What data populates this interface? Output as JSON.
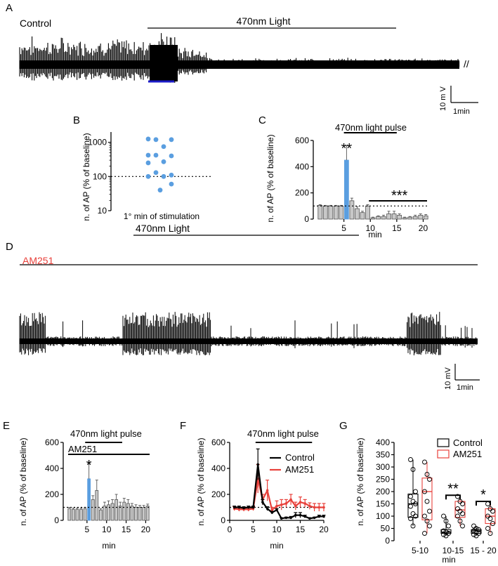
{
  "colors": {
    "blue": "#5a9ee0",
    "dark_blue": "#1b1bc8",
    "red": "#e8413b",
    "red_text": "#e8413b",
    "gray": "#c8c8c8",
    "black": "#000000"
  },
  "panel_a": {
    "letter": "A",
    "condition_label": "Control",
    "light_label": "470nm Light",
    "break_mark": "//",
    "scale_v": "10 m V",
    "scale_t": "1min"
  },
  "panel_d": {
    "letter": "D",
    "condition_label": "AM251",
    "light_label": "470nm Light",
    "scale_v": "10 mV",
    "scale_t": "1min"
  },
  "chart_data": [
    {
      "id": "B",
      "letter": "B",
      "type": "scatter",
      "ylabel": "n. of AP (% of baseline)",
      "xlabel": "1° min of stimulation",
      "yscale": "log",
      "ylim": [
        10,
        2000
      ],
      "yticks": [
        "10",
        "100",
        "1000"
      ],
      "reference_line": 100,
      "points": [
        1250,
        1200,
        1200,
        750,
        420,
        420,
        400,
        270,
        250,
        130,
        110,
        100,
        100,
        60,
        40
      ],
      "point_color": "#5a9ee0"
    },
    {
      "id": "C",
      "letter": "C",
      "type": "bar",
      "ylabel": "n. of AP (% of baseline)",
      "xlabel": "min",
      "ylim": [
        0,
        600
      ],
      "yticks": [
        "0",
        "200",
        "400",
        "600"
      ],
      "xticks": [
        "5",
        "10",
        "15",
        "20"
      ],
      "reference_line": 100,
      "light_label": "470nm light pulse",
      "stat_marks": [
        "**",
        "***"
      ],
      "values": [
        105,
        100,
        100,
        100,
        100,
        450,
        140,
        80,
        50,
        100,
        10,
        20,
        20,
        40,
        40,
        30,
        10,
        15,
        20,
        30,
        25
      ],
      "errors": [
        5,
        5,
        5,
        5,
        5,
        110,
        20,
        15,
        10,
        10,
        5,
        5,
        10,
        20,
        20,
        10,
        5,
        5,
        10,
        10,
        10
      ],
      "highlight_index": 5,
      "highlight_color": "#5a9ee0"
    },
    {
      "id": "E",
      "letter": "E",
      "type": "bar",
      "ylabel": "n. of AP (% of baseline)",
      "xlabel": "min",
      "ylim": [
        0,
        600
      ],
      "yticks": [
        "0",
        "200",
        "400",
        "600"
      ],
      "xticks": [
        "5",
        "10",
        "15",
        "20"
      ],
      "reference_line": 100,
      "light_label": "470nm light pulse",
      "drug_label": "AM251",
      "stat_marks": [
        "*"
      ],
      "values": [
        90,
        85,
        85,
        85,
        90,
        320,
        160,
        230,
        80,
        110,
        120,
        130,
        160,
        110,
        140,
        130,
        110,
        100,
        100,
        100,
        110
      ],
      "errors": [
        10,
        10,
        10,
        10,
        10,
        120,
        30,
        80,
        10,
        30,
        30,
        30,
        40,
        30,
        30,
        30,
        20,
        20,
        15,
        15,
        15
      ],
      "highlight_index": 5,
      "highlight_color": "#5a9ee0"
    },
    {
      "id": "F",
      "letter": "F",
      "type": "line",
      "ylabel": "n. of AP (% of baseline)",
      "xlabel": "min",
      "ylim": [
        0,
        600
      ],
      "yticks": [
        "0",
        "200",
        "400",
        "600"
      ],
      "xticks": [
        "0",
        "5",
        "10",
        "15",
        "20"
      ],
      "reference_line": 100,
      "light_label": "470nm light pulse",
      "x": [
        1,
        2,
        3,
        4,
        5,
        6,
        7,
        8,
        9,
        10,
        11,
        12,
        13,
        14,
        15,
        16,
        17,
        18,
        19,
        20
      ],
      "series": [
        {
          "name": "Control",
          "color": "#000000",
          "values": [
            100,
            100,
            95,
            100,
            100,
            430,
            140,
            90,
            60,
            80,
            15,
            20,
            20,
            40,
            40,
            30,
            15,
            20,
            30,
            30
          ],
          "errors": [
            10,
            10,
            10,
            10,
            10,
            120,
            20,
            15,
            10,
            10,
            5,
            5,
            10,
            20,
            20,
            10,
            5,
            5,
            10,
            10
          ]
        },
        {
          "name": "AM251",
          "color": "#e8413b",
          "values": [
            90,
            85,
            85,
            85,
            90,
            320,
            160,
            230,
            80,
            110,
            120,
            130,
            160,
            110,
            140,
            130,
            110,
            100,
            100,
            100
          ],
          "errors": [
            15,
            15,
            15,
            15,
            15,
            110,
            40,
            80,
            20,
            40,
            40,
            30,
            40,
            30,
            40,
            30,
            25,
            30,
            30,
            30
          ]
        }
      ]
    },
    {
      "id": "G",
      "letter": "G",
      "type": "box",
      "ylabel": "n. of AP (% of baseline)",
      "xlabel": "min",
      "ylim": [
        0,
        400
      ],
      "yticks": [
        "0",
        "50",
        "100",
        "150",
        "200",
        "250",
        "300",
        "350",
        "400"
      ],
      "categories": [
        "5-10",
        "10-15",
        "15 - 20"
      ],
      "legend": [
        {
          "name": "Control",
          "color": "#000000"
        },
        {
          "name": "AM251",
          "color": "#e8413b"
        }
      ],
      "stat_marks": [
        "**",
        "*"
      ],
      "groups": [
        {
          "category": "5-10",
          "series": "Control",
          "min": 60,
          "q1": 95,
          "median": 150,
          "q3": 190,
          "max": 330,
          "points": [
            330,
            290,
            200,
            180,
            160,
            150,
            140,
            110,
            100,
            90,
            60
          ]
        },
        {
          "category": "5-10",
          "series": "AM251",
          "min": 30,
          "q1": 85,
          "median": 200,
          "q3": 255,
          "max": 320,
          "points": [
            320,
            270,
            250,
            200,
            160,
            120,
            100,
            80,
            60,
            30
          ]
        },
        {
          "category": "10-15",
          "series": "Control",
          "min": 20,
          "q1": 30,
          "median": 35,
          "q3": 45,
          "max": 100,
          "points": [
            100,
            80,
            60,
            40,
            35,
            30,
            25,
            20
          ]
        },
        {
          "category": "10-15",
          "series": "AM251",
          "min": 60,
          "q1": 95,
          "median": 125,
          "q3": 160,
          "max": 180,
          "points": [
            180,
            160,
            150,
            130,
            120,
            110,
            100,
            80,
            60
          ]
        },
        {
          "category": "15 - 20",
          "series": "Control",
          "min": 20,
          "q1": 30,
          "median": 40,
          "q3": 45,
          "max": 60,
          "points": [
            60,
            50,
            45,
            40,
            35,
            30,
            25,
            20
          ]
        },
        {
          "category": "15 - 20",
          "series": "AM251",
          "min": 30,
          "q1": 70,
          "median": 100,
          "q3": 130,
          "max": 150,
          "points": [
            150,
            130,
            120,
            100,
            90,
            70,
            50,
            30
          ]
        }
      ]
    }
  ]
}
